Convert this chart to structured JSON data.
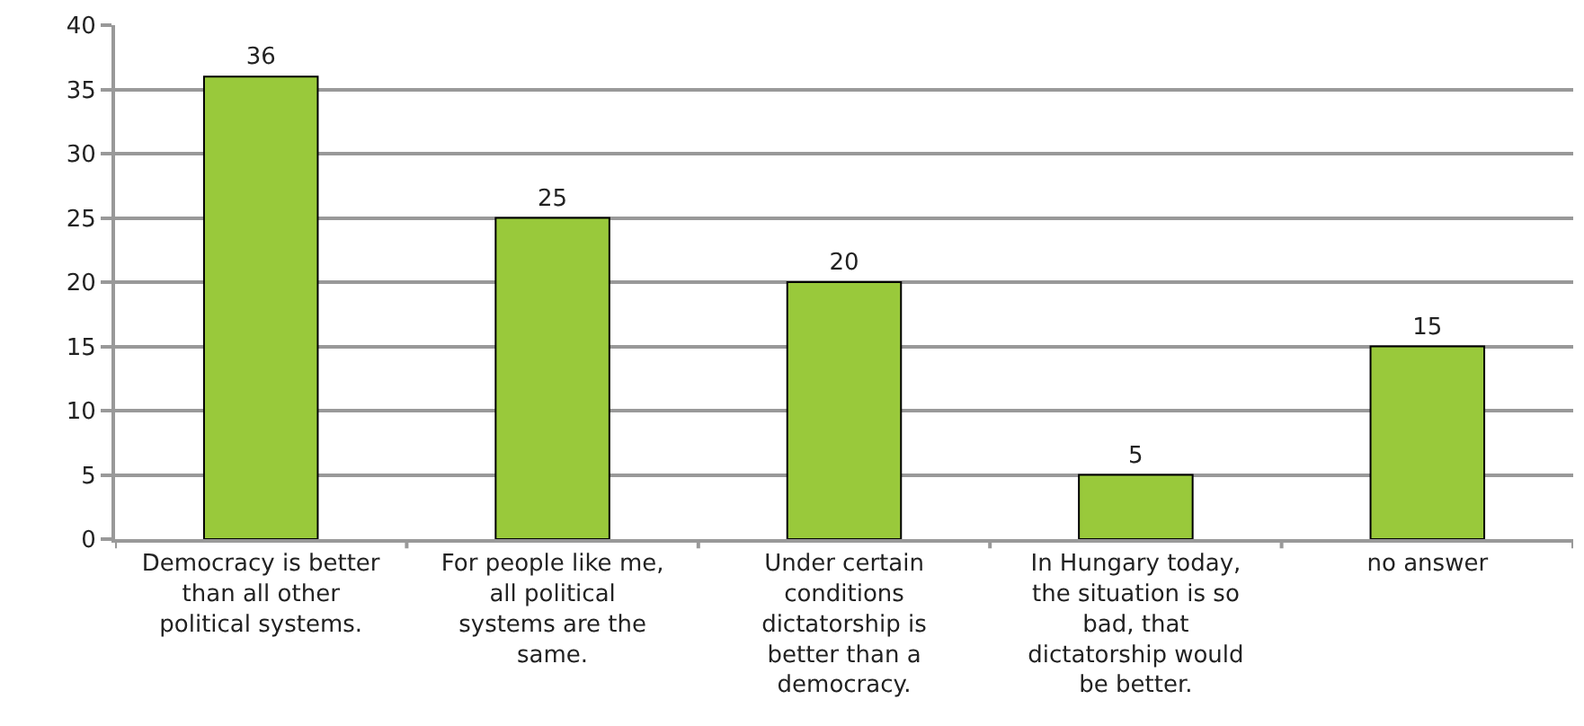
{
  "chart_data": {
    "type": "bar",
    "categories": [
      "Democracy is better than all other political systems.",
      "For people like me, all political systems are the same.",
      "Under certain conditions dictatorship is better than a democracy.",
      "In Hungary today, the situation is so bad, that dictatorship would be better.",
      "no answer"
    ],
    "values": [
      36,
      25,
      20,
      5,
      15
    ],
    "color": "#99c93b",
    "ylim": [
      0,
      40
    ],
    "yticks": [
      0,
      5,
      10,
      15,
      20,
      25,
      30,
      35,
      40
    ],
    "grid": "y",
    "data_labels": true
  }
}
